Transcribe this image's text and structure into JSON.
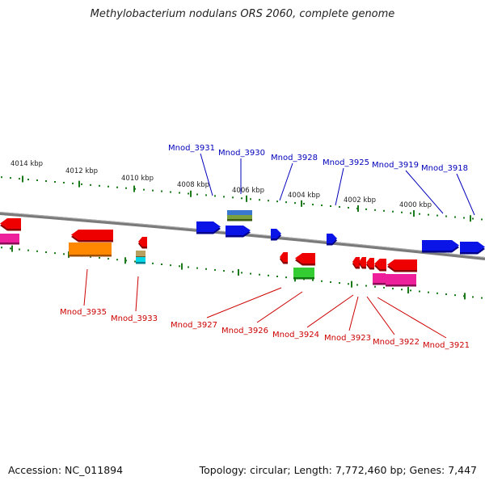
{
  "title": "Methylobacterium nodulans ORS 2060, complete genome",
  "footer": {
    "accession": "Accession: NC_011894",
    "topology": "Topology: circular; Length: 7,772,460 bp; Genes: 7,447"
  },
  "scale_labels": [
    "4014 kbp",
    "4012 kbp",
    "4010 kbp",
    "4008 kbp",
    "4006 kbp",
    "4004 kbp",
    "4002 kbp",
    "4000 kbp"
  ],
  "colors": {
    "top_label": "#0000bb",
    "bottom_label": "#cc0000",
    "tick": "#1a7a1a",
    "backbone": "#7a7a7a"
  },
  "genes_top": [
    {
      "name": "Mnod_3931",
      "color": "#0000ee",
      "dir": "forward"
    },
    {
      "name": "Mnod_3930",
      "color": "#0000ee",
      "dir": "forward"
    },
    {
      "name": "Mnod_3928",
      "color": "#0000ee",
      "dir": "forward"
    },
    {
      "name": "Mnod_3925",
      "color": "#0000ee",
      "dir": "forward"
    },
    {
      "name": "Mnod_3919",
      "color": "#0000ee",
      "dir": "forward"
    },
    {
      "name": "Mnod_3918",
      "color": "#0000ee",
      "dir": "forward"
    }
  ],
  "genes_bottom": [
    {
      "name": "Mnod_3935",
      "color": "#ee0000",
      "dir": "reverse"
    },
    {
      "name": "Mnod_3933",
      "color": "#ee0000",
      "dir": "reverse"
    },
    {
      "name": "Mnod_3927",
      "color": "#ee0000",
      "dir": "reverse"
    },
    {
      "name": "Mnod_3926",
      "color": "#ee0000",
      "dir": "reverse"
    },
    {
      "name": "Mnod_3924",
      "color": "#ee0000",
      "dir": "reverse"
    },
    {
      "name": "Mnod_3923",
      "color": "#ee0000",
      "dir": "reverse"
    },
    {
      "name": "Mnod_3922",
      "color": "#ee0000",
      "dir": "reverse"
    },
    {
      "name": "Mnod_3921",
      "color": "#ee0000",
      "dir": "reverse"
    }
  ]
}
